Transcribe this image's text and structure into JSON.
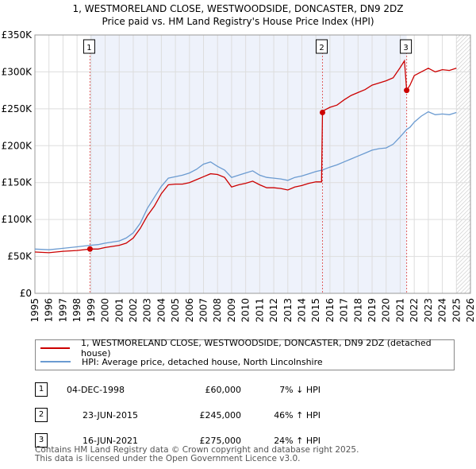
{
  "chart_data": {
    "type": "line",
    "title": "1, WESTMORELAND CLOSE, WESTWOODSIDE, DONCASTER, DN9 2DZ",
    "subtitle": "Price paid vs. HM Land Registry's House Price Index (HPI)",
    "xlabel": "",
    "ylabel": "",
    "xlim": [
      1995,
      2026
    ],
    "ylim": [
      0,
      350000
    ],
    "x_ticks": [
      1995,
      1996,
      1997,
      1998,
      1999,
      2000,
      2001,
      2002,
      2003,
      2004,
      2005,
      2006,
      2007,
      2008,
      2009,
      2010,
      2011,
      2012,
      2013,
      2014,
      2015,
      2016,
      2017,
      2018,
      2019,
      2020,
      2021,
      2022,
      2023,
      2024,
      2025,
      2026
    ],
    "y_ticks": [
      {
        "value": 0,
        "label": "£0"
      },
      {
        "value": 50000,
        "label": "£50K"
      },
      {
        "value": 100000,
        "label": "£100K"
      },
      {
        "value": 150000,
        "label": "£150K"
      },
      {
        "value": 200000,
        "label": "£200K"
      },
      {
        "value": 250000,
        "label": "£250K"
      },
      {
        "value": 300000,
        "label": "£300K"
      },
      {
        "value": 350000,
        "label": "£350K"
      }
    ],
    "series": [
      {
        "name": "1, WESTMORELAND CLOSE, WESTWOODSIDE, DONCASTER, DN9 2DZ (detached house)",
        "color": "#cc0000",
        "x": [
          1995.0,
          1996.0,
          1997.0,
          1998.0,
          1998.92,
          1999.5,
          2000.0,
          2001.0,
          2001.5,
          2002.0,
          2002.5,
          2003.0,
          2003.5,
          2004.0,
          2004.5,
          2005.0,
          2005.5,
          2006.0,
          2006.5,
          2007.0,
          2007.5,
          2008.0,
          2008.5,
          2009.0,
          2009.5,
          2010.0,
          2010.5,
          2011.0,
          2011.5,
          2012.0,
          2012.5,
          2013.0,
          2013.5,
          2014.0,
          2014.5,
          2015.0,
          2015.4,
          2015.47,
          2015.6,
          2016.0,
          2016.5,
          2017.0,
          2017.5,
          2018.0,
          2018.5,
          2019.0,
          2019.5,
          2020.0,
          2020.5,
          2021.0,
          2021.3,
          2021.46,
          2021.7,
          2022.0,
          2022.5,
          2023.0,
          2023.5,
          2024.0,
          2024.5,
          2025.0
        ],
        "y": [
          56000,
          55000,
          57000,
          58000,
          60000,
          60000,
          62000,
          65000,
          68000,
          75000,
          88000,
          105000,
          118000,
          135000,
          147000,
          148000,
          148000,
          150000,
          154000,
          158000,
          162000,
          161000,
          157000,
          144000,
          147000,
          149000,
          152000,
          147000,
          143000,
          143000,
          142000,
          140000,
          144000,
          146000,
          149000,
          151000,
          151000,
          245000,
          248000,
          252000,
          255000,
          262000,
          268000,
          272000,
          276000,
          282000,
          285000,
          288000,
          292000,
          306000,
          315000,
          275000,
          282000,
          295000,
          300000,
          305000,
          300000,
          303000,
          302000,
          305000
        ]
      },
      {
        "name": "HPI: Average price, detached house, North Lincolnshire",
        "color": "#6b9bd1",
        "x": [
          1995.0,
          1996.0,
          1997.0,
          1998.0,
          1998.92,
          1999.5,
          2000.0,
          2001.0,
          2001.5,
          2002.0,
          2002.5,
          2003.0,
          2003.5,
          2004.0,
          2004.5,
          2005.0,
          2005.5,
          2006.0,
          2006.5,
          2007.0,
          2007.5,
          2008.0,
          2008.5,
          2009.0,
          2009.5,
          2010.0,
          2010.5,
          2011.0,
          2011.5,
          2012.0,
          2012.5,
          2013.0,
          2013.5,
          2014.0,
          2014.5,
          2015.0,
          2015.47,
          2016.0,
          2016.5,
          2017.0,
          2017.5,
          2018.0,
          2018.5,
          2019.0,
          2019.5,
          2020.0,
          2020.5,
          2021.0,
          2021.46,
          2021.7,
          2022.0,
          2022.5,
          2023.0,
          2023.5,
          2024.0,
          2024.5,
          2025.0
        ],
        "y": [
          60000,
          59000,
          61000,
          63000,
          65000,
          66000,
          68000,
          71000,
          75000,
          82000,
          95000,
          115000,
          130000,
          145000,
          156000,
          158000,
          160000,
          163000,
          168000,
          175000,
          178000,
          172000,
          167000,
          157000,
          160000,
          163000,
          166000,
          160000,
          157000,
          156000,
          155000,
          153000,
          157000,
          159000,
          162000,
          165000,
          167000,
          171000,
          174000,
          178000,
          182000,
          186000,
          190000,
          194000,
          196000,
          197000,
          202000,
          212000,
          222000,
          225000,
          232000,
          240000,
          246000,
          242000,
          243000,
          242000,
          245000
        ]
      }
    ],
    "markers": [
      {
        "label": "1",
        "x": 1998.92,
        "y": 60000
      },
      {
        "label": "2",
        "x": 2015.47,
        "y": 245000
      },
      {
        "label": "3",
        "x": 2021.46,
        "y": 275000
      }
    ],
    "legend": "below"
  },
  "table": [
    {
      "num": "1",
      "date": "04-DEC-1998",
      "price": "£60,000",
      "hpi": "7% ↓ HPI"
    },
    {
      "num": "2",
      "date": "23-JUN-2015",
      "price": "£245,000",
      "hpi": "46% ↑ HPI"
    },
    {
      "num": "3",
      "date": "16-JUN-2021",
      "price": "£275,000",
      "hpi": "24% ↑ HPI"
    }
  ],
  "footer": {
    "line1": "Contains HM Land Registry data © Crown copyright and database right 2025.",
    "line2": "This data is licensed under the Open Government Licence v3.0."
  }
}
